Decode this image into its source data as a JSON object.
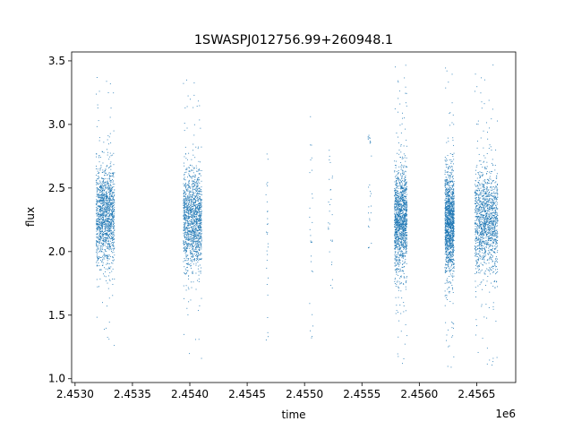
{
  "chart_data": {
    "type": "scatter",
    "title": "1SWASPJ012756.99+260948.1",
    "xlabel": "time",
    "ylabel": "flux",
    "x_offset_label": "1e6",
    "xlim": [
      2.45297,
      2.45684
    ],
    "ylim": [
      0.97,
      3.57
    ],
    "x_ticks": [
      2.453,
      2.4535,
      2.454,
      2.4545,
      2.455,
      2.4555,
      2.456,
      2.4565
    ],
    "x_tick_labels": [
      "2.4530",
      "2.4535",
      "2.4540",
      "2.4545",
      "2.4550",
      "2.4555",
      "2.4560",
      "2.4565"
    ],
    "y_ticks": [
      1.0,
      1.5,
      2.0,
      2.5,
      3.0,
      3.5
    ],
    "y_tick_labels": [
      "1.0",
      "1.5",
      "2.0",
      "2.5",
      "3.0",
      "3.5"
    ],
    "grid": false,
    "marker_color": "#1f77b4",
    "clusters": [
      {
        "x_min": 2.45318,
        "x_max": 2.45334,
        "y_center": 2.28,
        "y_min": 1.12,
        "y_max": 3.47,
        "density": "high"
      },
      {
        "x_min": 2.45394,
        "x_max": 2.4541,
        "y_center": 2.25,
        "y_min": 1.13,
        "y_max": 3.4,
        "density": "high"
      },
      {
        "x_min": 2.45466,
        "x_max": 2.45468,
        "y_center": 2.2,
        "y_min": 1.27,
        "y_max": 2.93,
        "density": "sparse"
      },
      {
        "x_min": 2.45504,
        "x_max": 2.45507,
        "y_center": 2.2,
        "y_min": 1.27,
        "y_max": 3.23,
        "density": "sparse"
      },
      {
        "x_min": 2.4552,
        "x_max": 2.45524,
        "y_center": 2.2,
        "y_min": 1.65,
        "y_max": 2.8,
        "density": "sparse"
      },
      {
        "x_min": 2.45555,
        "x_max": 2.45558,
        "y_center": 2.45,
        "y_min": 2.0,
        "y_max": 2.92,
        "density": "sparse"
      },
      {
        "x_min": 2.45578,
        "x_max": 2.45589,
        "y_center": 2.25,
        "y_min": 1.09,
        "y_max": 3.5,
        "density": "high"
      },
      {
        "x_min": 2.45622,
        "x_max": 2.4563,
        "y_center": 2.25,
        "y_min": 1.09,
        "y_max": 3.47,
        "density": "high"
      },
      {
        "x_min": 2.45648,
        "x_max": 2.45668,
        "y_center": 2.25,
        "y_min": 1.1,
        "y_max": 3.48,
        "density": "high"
      }
    ]
  }
}
